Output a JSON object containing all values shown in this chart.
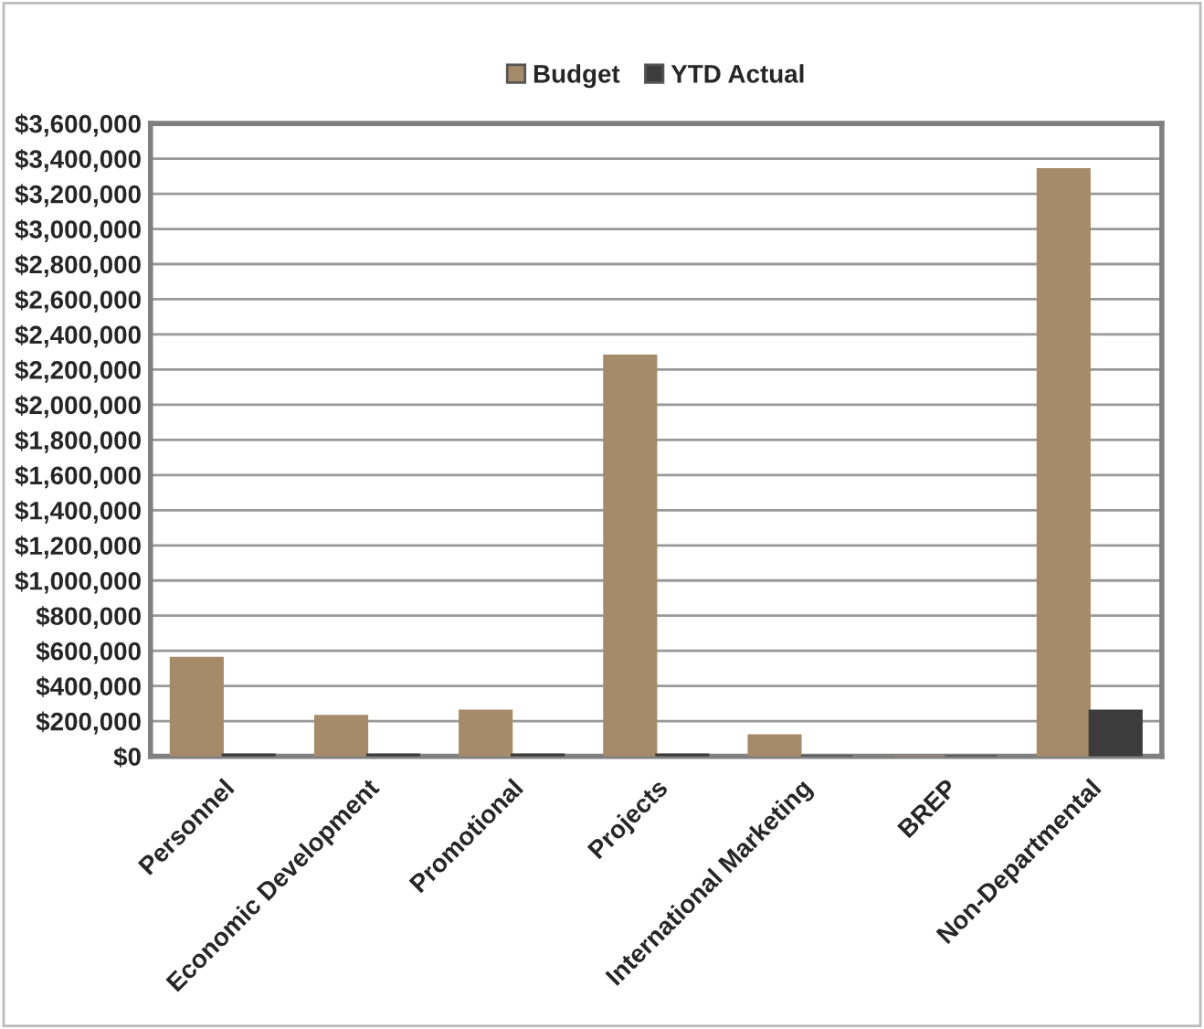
{
  "chart_data": {
    "type": "bar",
    "categories": [
      "Personnel",
      "Economic Development",
      "Promotional",
      "Projects",
      "International Marketing",
      "BREP",
      "Non-Departmental"
    ],
    "series": [
      {
        "name": "Budget",
        "color": "#a58b69",
        "values": [
          560000,
          230000,
          260000,
          2280000,
          120000,
          0,
          3340000
        ]
      },
      {
        "name": "YTD Actual",
        "color": "#3c3c3c",
        "values": [
          10000,
          10000,
          10000,
          10000,
          0,
          0,
          260000
        ]
      }
    ],
    "ylim": [
      0,
      3600000
    ],
    "yticks": [
      {
        "value": 0,
        "label": "$0"
      },
      {
        "value": 200000,
        "label": "$200,000"
      },
      {
        "value": 400000,
        "label": "$400,000"
      },
      {
        "value": 600000,
        "label": "$600,000"
      },
      {
        "value": 800000,
        "label": "$800,000"
      },
      {
        "value": 1000000,
        "label": "$1,000,000"
      },
      {
        "value": 1200000,
        "label": "$1,200,000"
      },
      {
        "value": 1400000,
        "label": "$1,400,000"
      },
      {
        "value": 1600000,
        "label": "$1,600,000"
      },
      {
        "value": 1800000,
        "label": "$1,800,000"
      },
      {
        "value": 2000000,
        "label": "$2,000,000"
      },
      {
        "value": 2200000,
        "label": "$2,200,000"
      },
      {
        "value": 2400000,
        "label": "$2,400,000"
      },
      {
        "value": 2600000,
        "label": "$2,600,000"
      },
      {
        "value": 2800000,
        "label": "$2,800,000"
      },
      {
        "value": 3000000,
        "label": "$3,000,000"
      },
      {
        "value": 3200000,
        "label": "$3,200,000"
      },
      {
        "value": 3400000,
        "label": "$3,400,000"
      },
      {
        "value": 3600000,
        "label": "$3,600,000"
      }
    ],
    "grid": "y",
    "legend": "top"
  }
}
